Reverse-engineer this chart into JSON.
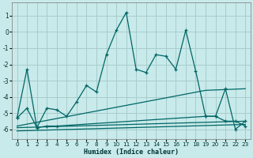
{
  "xlabel": "Humidex (Indice chaleur)",
  "background_color": "#c8eaea",
  "grid_color": "#a8cccc",
  "line_color": "#006666",
  "xlim": [
    -0.5,
    23.5
  ],
  "ylim": [
    -6.6,
    1.8
  ],
  "yticks": [
    1,
    0,
    -1,
    -2,
    -3,
    -4,
    -5,
    -6
  ],
  "xticks": [
    0,
    1,
    2,
    3,
    4,
    5,
    6,
    7,
    8,
    9,
    10,
    11,
    12,
    13,
    14,
    15,
    16,
    17,
    18,
    19,
    20,
    21,
    22,
    23
  ],
  "series_main": [
    [
      0,
      -5.3
    ],
    [
      1,
      -2.3
    ],
    [
      2,
      -5.9
    ],
    [
      3,
      -4.7
    ],
    [
      4,
      -4.8
    ],
    [
      5,
      -5.2
    ],
    [
      6,
      -4.3
    ],
    [
      7,
      -3.3
    ],
    [
      8,
      -3.7
    ],
    [
      9,
      -1.4
    ],
    [
      10,
      0.1
    ],
    [
      11,
      1.2
    ],
    [
      12,
      -2.3
    ],
    [
      13,
      -2.5
    ],
    [
      14,
      -1.4
    ],
    [
      15,
      -1.5
    ],
    [
      16,
      -2.3
    ],
    [
      17,
      0.1
    ],
    [
      18,
      -2.4
    ],
    [
      19,
      -5.2
    ],
    [
      20,
      -5.2
    ],
    [
      21,
      -3.5
    ],
    [
      22,
      -6.0
    ],
    [
      23,
      -5.5
    ]
  ],
  "series_slow1": [
    [
      0,
      -5.3
    ],
    [
      1,
      -4.7
    ],
    [
      2,
      -5.9
    ],
    [
      3,
      -5.8
    ],
    [
      4,
      -5.8
    ],
    [
      19,
      -5.2
    ],
    [
      20,
      -5.2
    ],
    [
      21,
      -5.5
    ],
    [
      22,
      -5.5
    ],
    [
      23,
      -5.8
    ]
  ],
  "series_rising": [
    [
      0,
      -5.8
    ],
    [
      19,
      -3.6
    ],
    [
      23,
      -3.5
    ]
  ],
  "series_flat1": [
    [
      0,
      -5.9
    ],
    [
      23,
      -5.5
    ]
  ],
  "series_flat2": [
    [
      0,
      -6.1
    ],
    [
      23,
      -5.7
    ]
  ]
}
